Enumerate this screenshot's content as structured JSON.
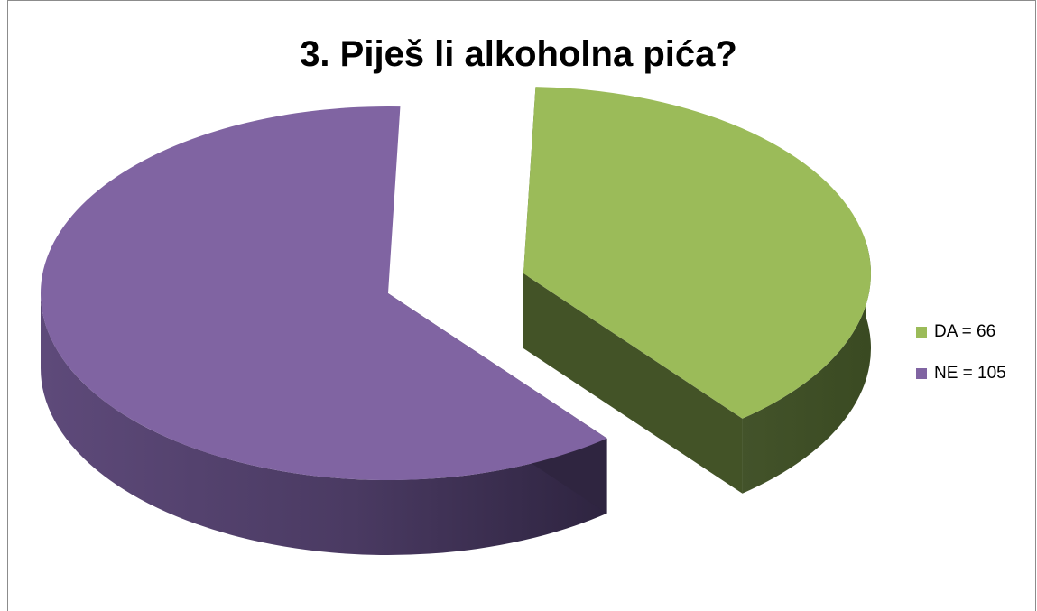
{
  "chart_data": {
    "type": "pie",
    "title": "3. Piješ li alkoholna pića?",
    "series": [
      {
        "label": "DA = 66",
        "value": 66,
        "color": "#9BBB59",
        "exploded": true
      },
      {
        "label": "NE = 105",
        "value": 105,
        "color": "#8064A2",
        "exploded": false
      }
    ],
    "legend_position": "right",
    "style": "3d"
  }
}
